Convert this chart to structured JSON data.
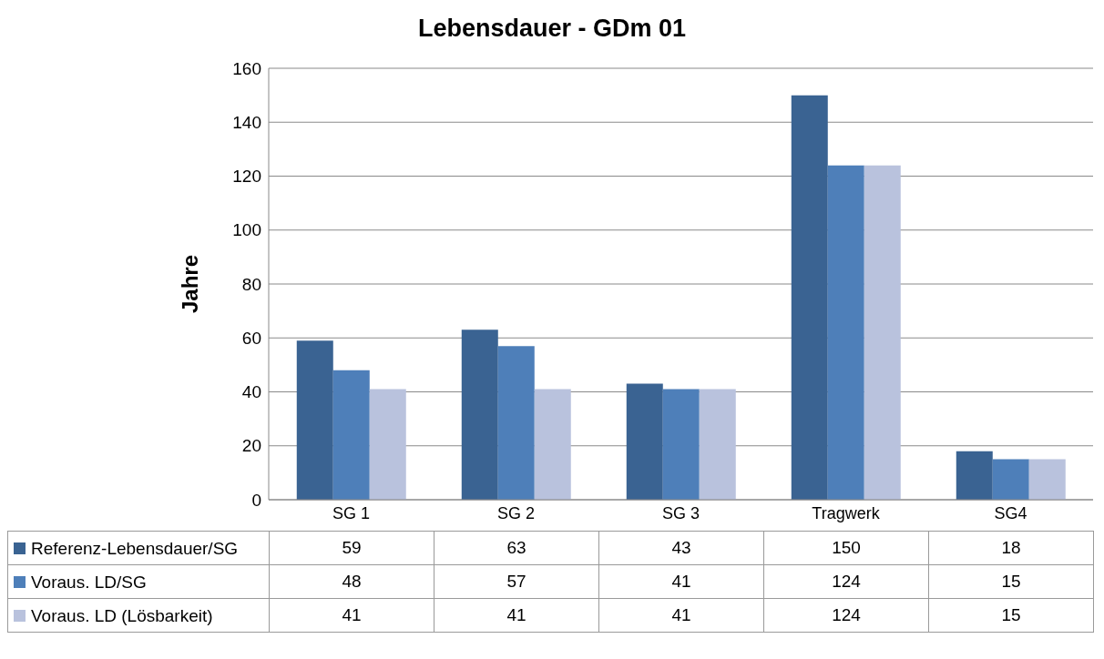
{
  "chart_data": {
    "type": "bar",
    "title": "Lebensdauer - GDm 01",
    "ylabel": "Jahre",
    "categories": [
      "SG 1",
      "SG 2",
      "SG 3",
      "Tragwerk",
      "SG4"
    ],
    "series": [
      {
        "name": "Referenz-Lebensdauer/SG",
        "color": "#3a6392",
        "values": [
          59,
          63,
          43,
          150,
          18
        ]
      },
      {
        "name": "Voraus. LD/SG",
        "color": "#4e7fb9",
        "values": [
          48,
          57,
          41,
          124,
          15
        ]
      },
      {
        "name": "Voraus. LD (Lösbarkeit)",
        "color": "#b9c2dd",
        "values": [
          41,
          41,
          41,
          124,
          15
        ]
      }
    ],
    "ylim": [
      0,
      160
    ],
    "yticks": [
      0,
      20,
      40,
      60,
      80,
      100,
      120,
      140,
      160
    ],
    "grid": "y",
    "legend": "bottom",
    "data_labels": true
  }
}
